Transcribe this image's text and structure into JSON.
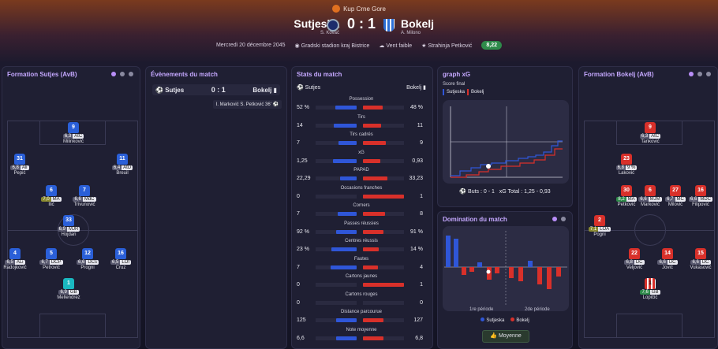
{
  "header": {
    "competition": "Kup Crne Gore",
    "home_team": "Sutjeska",
    "home_coach": "S. Kovač",
    "away_team": "Bokelj",
    "away_coach": "A. Milono",
    "score": "0 : 1",
    "date": "Mercredi 20 décembre 2045",
    "stadium": "Gradski stadion kraj Bistrice",
    "weather": "Vent faible",
    "motm": "Strahinja Petković",
    "motm_rating": "8,22"
  },
  "home_formation": {
    "title": "Formation Sutjes (AvB)",
    "players": [
      {
        "num": "9",
        "rating": "6,3",
        "pos": "AtC",
        "name": "Milinković"
      },
      {
        "num": "31",
        "rating": "6,8",
        "pos": "Ali",
        "name": "Pepić"
      },
      {
        "num": "11",
        "rating": "6,4",
        "pos": "AtD",
        "name": "Breuil"
      },
      {
        "num": "6",
        "rating": "7,0",
        "pos": "MA",
        "name": "Ilić"
      },
      {
        "num": "7",
        "rating": "6,6",
        "pos": "MdC",
        "name": "Trivunović"
      },
      {
        "num": "33",
        "rating": "6,9",
        "pos": "MJR",
        "name": "Hojdari"
      },
      {
        "num": "4",
        "rating": "6,5",
        "pos": "ALi",
        "name": "Radojković"
      },
      {
        "num": "5",
        "rating": "6,7",
        "pos": "DCP",
        "name": "Petrović"
      },
      {
        "num": "12",
        "rating": "6,6",
        "pos": "DCs",
        "name": "Progni"
      },
      {
        "num": "16",
        "rating": "6,5",
        "pos": "LOf",
        "name": "Cruz"
      },
      {
        "num": "1",
        "rating": "6,9",
        "pos": "GB",
        "name": "Mellendrez"
      }
    ]
  },
  "events": {
    "title": "Évènements du match",
    "home": "Sutjes",
    "away": "Bokelj",
    "score": "0 : 1",
    "goal": "I. Marković  S. Petković  36'"
  },
  "stats": {
    "title": "Stats du match",
    "home": "Sutjes",
    "away": "Bokelj",
    "rows": [
      {
        "label": "Possession",
        "h": "52 %",
        "a": "48 %",
        "hv": 52,
        "av": 48
      },
      {
        "label": "Tirs",
        "h": "14",
        "a": "11",
        "hv": 14,
        "av": 11
      },
      {
        "label": "Tirs cadrés",
        "h": "7",
        "a": "9",
        "hv": 7,
        "av": 9
      },
      {
        "label": "xG",
        "h": "1,25",
        "a": "0,93",
        "hv": 1.25,
        "av": 0.93
      },
      {
        "label": "PAPAD",
        "h": "22,29",
        "a": "33,23",
        "hv": 22.29,
        "av": 33.23
      },
      {
        "label": "Occasions franches",
        "h": "0",
        "a": "1",
        "hv": 0,
        "av": 1
      },
      {
        "label": "Corners",
        "h": "7",
        "a": "8",
        "hv": 7,
        "av": 8
      },
      {
        "label": "Passes réussies",
        "h": "92 %",
        "a": "91 %",
        "hv": 92,
        "av": 91
      },
      {
        "label": "Centres réussis",
        "h": "23 %",
        "a": "14 %",
        "hv": 23,
        "av": 14
      },
      {
        "label": "Fautes",
        "h": "7",
        "a": "4",
        "hv": 7,
        "av": 4
      },
      {
        "label": "Cartons jaunes",
        "h": "0",
        "a": "1",
        "hv": 0,
        "av": 1
      },
      {
        "label": "Cartons rouges",
        "h": "0",
        "a": "0",
        "hv": 0,
        "av": 0
      },
      {
        "label": "Distance parcourue",
        "h": "125",
        "a": "127",
        "hv": 125,
        "av": 127
      },
      {
        "label": "Note moyenne",
        "h": "6,6",
        "a": "6,8",
        "hv": 6.6,
        "av": 6.8
      }
    ]
  },
  "xg_graph": {
    "title": "graph xG",
    "subtitle": "Score final",
    "legend_home": "Sutjeska",
    "legend_away": "Bokelj",
    "footer_goals": "Buts : 0 - 1",
    "footer_xg": "xG  Total : 1,25 - 0,93",
    "home_color": "#2f56d8",
    "away_color": "#d8302a"
  },
  "domination": {
    "title": "Domination du match",
    "period1": "1re période",
    "period2": "2de période",
    "legend_home": "Sutjeska",
    "legend_away": "Bokelj",
    "button": "Moyenne"
  },
  "away_formation": {
    "title": "Formation Bokelj (AvB)",
    "players": [
      {
        "num": "9",
        "rating": "6,3",
        "pos": "AtC",
        "name": "Tanković"
      },
      {
        "num": "23",
        "rating": "6,8",
        "pos": "9 %",
        "name": "Laković"
      },
      {
        "num": "30",
        "rating": "8,2",
        "pos": "MA",
        "name": "Petković"
      },
      {
        "num": "6",
        "rating": "6,6",
        "pos": "MJM",
        "name": "Marković"
      },
      {
        "num": "27",
        "rating": "6,7",
        "pos": "MC",
        "name": "Milović"
      },
      {
        "num": "16",
        "rating": "6,6",
        "pos": "MDC",
        "name": "Filipović"
      },
      {
        "num": "2",
        "rating": "7,1",
        "pos": "LOA",
        "name": "Pogni"
      },
      {
        "num": "22",
        "rating": "6,8",
        "pos": "DC",
        "name": "Veljović"
      },
      {
        "num": "14",
        "rating": "6,6",
        "pos": "DC",
        "name": "Jović"
      },
      {
        "num": "15",
        "rating": "6,6",
        "pos": "DC",
        "name": "Vukasović"
      },
      {
        "num": "1",
        "rating": "7,6",
        "pos": "GB",
        "name": "Lopičić"
      }
    ]
  }
}
